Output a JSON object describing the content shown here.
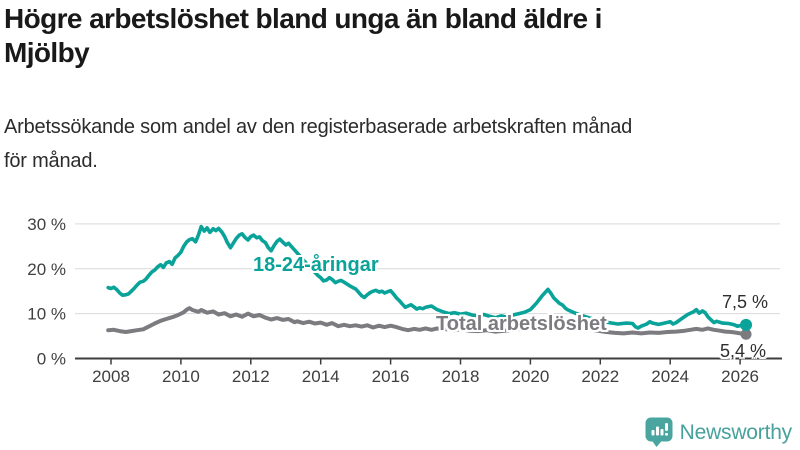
{
  "header": {
    "title_lines": [
      "Högre arbetslöshet bland unga än bland äldre i",
      "Mjölby"
    ],
    "subtitle_lines": [
      "Arbetssökande som andel av den registerbaserade arbetskraften månad",
      "för månad."
    ]
  },
  "footer": {
    "brand": "Newsworthy",
    "logo_icon": "bar-chart-speech-bubble-icon"
  },
  "colors": {
    "accent_teal": "#0aa39a",
    "series_gray": "#7b7b80",
    "grid": "#d9d9d9",
    "axis": "#3d3d3d",
    "logo_teal": "#4aa5a0"
  },
  "chart_data": {
    "type": "line",
    "title": "Högre arbetslöshet bland unga än bland äldre i Mjölby",
    "subtitle": "Arbetssökande som andel av den registerbaserade arbetskraften månad för månad.",
    "xlabel": "",
    "ylabel": "",
    "grid": true,
    "legend_position": "inline-labels",
    "x_axis": {
      "range": [
        2007.85,
        2026.35
      ],
      "ticks": [
        2008,
        2010,
        2012,
        2014,
        2016,
        2018,
        2020,
        2022,
        2024,
        2026
      ]
    },
    "y_axis": {
      "range": [
        0,
        33
      ],
      "ticks": [
        {
          "v": 0,
          "label": "0 %"
        },
        {
          "v": 10,
          "label": "10 %"
        },
        {
          "v": 20,
          "label": "20 %"
        },
        {
          "v": 30,
          "label": "30 %"
        }
      ]
    },
    "series": [
      {
        "name": "18-24-åringar",
        "color": "#0aa39a",
        "end_label": "7,5 %",
        "end_value": 7.5,
        "points": [
          [
            2007.92,
            15.8
          ],
          [
            2008.0,
            15.6
          ],
          [
            2008.08,
            15.9
          ],
          [
            2008.17,
            15.3
          ],
          [
            2008.25,
            14.6
          ],
          [
            2008.33,
            14.1
          ],
          [
            2008.42,
            14.2
          ],
          [
            2008.5,
            14.4
          ],
          [
            2008.58,
            15.0
          ],
          [
            2008.67,
            15.7
          ],
          [
            2008.75,
            16.4
          ],
          [
            2008.83,
            17.0
          ],
          [
            2008.92,
            17.2
          ],
          [
            2009.0,
            17.7
          ],
          [
            2009.08,
            18.5
          ],
          [
            2009.17,
            19.3
          ],
          [
            2009.25,
            19.7
          ],
          [
            2009.33,
            20.4
          ],
          [
            2009.42,
            20.9
          ],
          [
            2009.5,
            20.3
          ],
          [
            2009.58,
            21.3
          ],
          [
            2009.67,
            21.6
          ],
          [
            2009.75,
            21.0
          ],
          [
            2009.83,
            22.4
          ],
          [
            2009.92,
            23.0
          ],
          [
            2010.0,
            23.7
          ],
          [
            2010.08,
            25.0
          ],
          [
            2010.17,
            26.0
          ],
          [
            2010.25,
            26.5
          ],
          [
            2010.33,
            26.7
          ],
          [
            2010.42,
            26.0
          ],
          [
            2010.5,
            27.5
          ],
          [
            2010.58,
            29.4
          ],
          [
            2010.67,
            28.4
          ],
          [
            2010.75,
            29.1
          ],
          [
            2010.83,
            28.1
          ],
          [
            2010.92,
            28.9
          ],
          [
            2011.0,
            28.5
          ],
          [
            2011.08,
            29.0
          ],
          [
            2011.17,
            28.2
          ],
          [
            2011.25,
            27.2
          ],
          [
            2011.33,
            25.8
          ],
          [
            2011.42,
            24.7
          ],
          [
            2011.5,
            25.7
          ],
          [
            2011.58,
            26.7
          ],
          [
            2011.67,
            27.5
          ],
          [
            2011.75,
            27.8
          ],
          [
            2011.83,
            27.0
          ],
          [
            2011.92,
            26.4
          ],
          [
            2012.0,
            27.2
          ],
          [
            2012.08,
            27.5
          ],
          [
            2012.17,
            26.9
          ],
          [
            2012.25,
            27.1
          ],
          [
            2012.33,
            26.3
          ],
          [
            2012.42,
            25.8
          ],
          [
            2012.5,
            24.7
          ],
          [
            2012.58,
            24.0
          ],
          [
            2012.67,
            25.2
          ],
          [
            2012.75,
            26.1
          ],
          [
            2012.83,
            26.6
          ],
          [
            2012.92,
            25.9
          ],
          [
            2013.0,
            25.3
          ],
          [
            2013.08,
            25.7
          ],
          [
            2013.17,
            24.9
          ],
          [
            2013.25,
            24.2
          ],
          [
            2013.33,
            23.5
          ],
          [
            2013.42,
            22.7
          ],
          [
            2013.5,
            22.0
          ],
          [
            2013.58,
            21.3
          ],
          [
            2013.67,
            20.5
          ],
          [
            2013.75,
            19.8
          ],
          [
            2013.83,
            19.2
          ],
          [
            2013.92,
            18.5
          ],
          [
            2014.0,
            18.0
          ],
          [
            2014.08,
            17.3
          ],
          [
            2014.17,
            17.5
          ],
          [
            2014.25,
            18.0
          ],
          [
            2014.33,
            17.6
          ],
          [
            2014.42,
            16.9
          ],
          [
            2014.5,
            17.2
          ],
          [
            2014.58,
            17.4
          ],
          [
            2014.67,
            17.0
          ],
          [
            2014.75,
            16.6
          ],
          [
            2014.83,
            16.2
          ],
          [
            2014.92,
            15.8
          ],
          [
            2015.0,
            15.5
          ],
          [
            2015.08,
            14.8
          ],
          [
            2015.17,
            14.0
          ],
          [
            2015.25,
            13.6
          ],
          [
            2015.33,
            14.2
          ],
          [
            2015.42,
            14.7
          ],
          [
            2015.5,
            15.0
          ],
          [
            2015.58,
            15.2
          ],
          [
            2015.67,
            14.8
          ],
          [
            2015.75,
            15.0
          ],
          [
            2015.83,
            14.6
          ],
          [
            2015.92,
            14.9
          ],
          [
            2016.0,
            15.1
          ],
          [
            2016.08,
            14.4
          ],
          [
            2016.17,
            13.5
          ],
          [
            2016.25,
            12.9
          ],
          [
            2016.33,
            12.2
          ],
          [
            2016.42,
            11.4
          ],
          [
            2016.5,
            11.7
          ],
          [
            2016.58,
            12.0
          ],
          [
            2016.67,
            11.5
          ],
          [
            2016.75,
            11.0
          ],
          [
            2016.83,
            11.3
          ],
          [
            2016.92,
            11.1
          ],
          [
            2017.0,
            11.4
          ],
          [
            2017.17,
            11.7
          ],
          [
            2017.33,
            10.9
          ],
          [
            2017.5,
            10.4
          ],
          [
            2017.67,
            10.0
          ],
          [
            2017.83,
            10.2
          ],
          [
            2018.0,
            9.9
          ],
          [
            2018.17,
            10.1
          ],
          [
            2018.33,
            9.7
          ],
          [
            2018.5,
            9.5
          ],
          [
            2018.67,
            9.8
          ],
          [
            2018.83,
            9.4
          ],
          [
            2019.0,
            9.1
          ],
          [
            2019.17,
            9.5
          ],
          [
            2019.33,
            9.2
          ],
          [
            2019.5,
            9.7
          ],
          [
            2019.67,
            10.0
          ],
          [
            2019.83,
            10.3
          ],
          [
            2020.0,
            10.9
          ],
          [
            2020.17,
            12.3
          ],
          [
            2020.33,
            13.9
          ],
          [
            2020.5,
            15.4
          ],
          [
            2020.58,
            14.6
          ],
          [
            2020.67,
            13.5
          ],
          [
            2020.83,
            12.3
          ],
          [
            2020.92,
            11.9
          ],
          [
            2021.0,
            11.2
          ],
          [
            2021.08,
            10.8
          ],
          [
            2021.25,
            10.2
          ],
          [
            2021.5,
            9.5
          ],
          [
            2021.75,
            8.9
          ],
          [
            2022.0,
            8.4
          ],
          [
            2022.25,
            8.0
          ],
          [
            2022.5,
            7.7
          ],
          [
            2022.75,
            7.9
          ],
          [
            2022.92,
            7.8
          ],
          [
            2023.0,
            7.1
          ],
          [
            2023.08,
            6.8
          ],
          [
            2023.17,
            7.2
          ],
          [
            2023.33,
            7.7
          ],
          [
            2023.42,
            8.2
          ],
          [
            2023.5,
            7.9
          ],
          [
            2023.67,
            7.6
          ],
          [
            2023.83,
            7.9
          ],
          [
            2024.0,
            8.2
          ],
          [
            2024.08,
            7.7
          ],
          [
            2024.17,
            8.0
          ],
          [
            2024.33,
            8.9
          ],
          [
            2024.5,
            9.8
          ],
          [
            2024.67,
            10.4
          ],
          [
            2024.75,
            10.9
          ],
          [
            2024.83,
            10.1
          ],
          [
            2024.92,
            10.6
          ],
          [
            2025.0,
            10.2
          ],
          [
            2025.08,
            9.3
          ],
          [
            2025.17,
            8.6
          ],
          [
            2025.25,
            8.0
          ],
          [
            2025.33,
            8.3
          ],
          [
            2025.5,
            7.9
          ],
          [
            2025.67,
            7.8
          ],
          [
            2025.83,
            7.5
          ],
          [
            2025.92,
            7.2
          ],
          [
            2026.0,
            7.3
          ],
          [
            2026.17,
            7.5
          ]
        ]
      },
      {
        "name": "Total arbetslöshet",
        "color": "#7b7b80",
        "end_label": "5,4 %",
        "end_value": 5.4,
        "points": [
          [
            2007.92,
            6.3
          ],
          [
            2008.08,
            6.4
          ],
          [
            2008.25,
            6.1
          ],
          [
            2008.42,
            5.9
          ],
          [
            2008.58,
            6.1
          ],
          [
            2008.75,
            6.3
          ],
          [
            2008.92,
            6.5
          ],
          [
            2009.08,
            7.1
          ],
          [
            2009.25,
            7.8
          ],
          [
            2009.42,
            8.4
          ],
          [
            2009.58,
            8.8
          ],
          [
            2009.75,
            9.2
          ],
          [
            2009.92,
            9.7
          ],
          [
            2010.08,
            10.3
          ],
          [
            2010.17,
            10.9
          ],
          [
            2010.25,
            11.2
          ],
          [
            2010.33,
            10.8
          ],
          [
            2010.5,
            10.4
          ],
          [
            2010.58,
            10.8
          ],
          [
            2010.75,
            10.2
          ],
          [
            2010.92,
            10.5
          ],
          [
            2011.08,
            9.8
          ],
          [
            2011.25,
            10.1
          ],
          [
            2011.42,
            9.4
          ],
          [
            2011.58,
            9.8
          ],
          [
            2011.75,
            9.3
          ],
          [
            2011.92,
            10.0
          ],
          [
            2012.08,
            9.4
          ],
          [
            2012.25,
            9.7
          ],
          [
            2012.42,
            9.1
          ],
          [
            2012.58,
            8.7
          ],
          [
            2012.75,
            9.0
          ],
          [
            2012.92,
            8.6
          ],
          [
            2013.08,
            8.8
          ],
          [
            2013.25,
            8.1
          ],
          [
            2013.33,
            8.3
          ],
          [
            2013.5,
            7.9
          ],
          [
            2013.67,
            8.2
          ],
          [
            2013.83,
            7.8
          ],
          [
            2014.0,
            8.0
          ],
          [
            2014.17,
            7.5
          ],
          [
            2014.33,
            7.9
          ],
          [
            2014.5,
            7.2
          ],
          [
            2014.67,
            7.5
          ],
          [
            2014.83,
            7.2
          ],
          [
            2015.0,
            7.4
          ],
          [
            2015.17,
            7.1
          ],
          [
            2015.33,
            7.4
          ],
          [
            2015.5,
            6.9
          ],
          [
            2015.67,
            7.3
          ],
          [
            2015.83,
            7.0
          ],
          [
            2016.0,
            7.3
          ],
          [
            2016.17,
            7.0
          ],
          [
            2016.33,
            6.6
          ],
          [
            2016.5,
            6.3
          ],
          [
            2016.67,
            6.6
          ],
          [
            2016.83,
            6.4
          ],
          [
            2017.0,
            6.7
          ],
          [
            2017.17,
            6.4
          ],
          [
            2017.33,
            6.7
          ],
          [
            2017.5,
            6.4
          ],
          [
            2017.67,
            6.6
          ],
          [
            2017.83,
            6.3
          ],
          [
            2018.0,
            6.5
          ],
          [
            2018.25,
            6.2
          ],
          [
            2018.5,
            6.1
          ],
          [
            2018.75,
            6.3
          ],
          [
            2019.0,
            6.0
          ],
          [
            2019.25,
            6.2
          ],
          [
            2019.5,
            6.4
          ],
          [
            2019.75,
            6.6
          ],
          [
            2020.0,
            6.9
          ],
          [
            2020.25,
            7.6
          ],
          [
            2020.5,
            8.2
          ],
          [
            2020.67,
            8.0
          ],
          [
            2020.92,
            7.7
          ],
          [
            2021.17,
            7.3
          ],
          [
            2021.42,
            6.9
          ],
          [
            2021.67,
            6.5
          ],
          [
            2021.92,
            6.2
          ],
          [
            2022.17,
            5.9
          ],
          [
            2022.42,
            5.7
          ],
          [
            2022.67,
            5.6
          ],
          [
            2022.92,
            5.8
          ],
          [
            2023.17,
            5.6
          ],
          [
            2023.42,
            5.8
          ],
          [
            2023.67,
            5.7
          ],
          [
            2023.92,
            5.9
          ],
          [
            2024.17,
            6.0
          ],
          [
            2024.42,
            6.2
          ],
          [
            2024.58,
            6.4
          ],
          [
            2024.75,
            6.6
          ],
          [
            2024.92,
            6.4
          ],
          [
            2025.08,
            6.7
          ],
          [
            2025.25,
            6.4
          ],
          [
            2025.42,
            6.2
          ],
          [
            2025.58,
            6.0
          ],
          [
            2025.75,
            5.9
          ],
          [
            2025.92,
            5.7
          ],
          [
            2026.17,
            5.4
          ]
        ]
      }
    ]
  }
}
